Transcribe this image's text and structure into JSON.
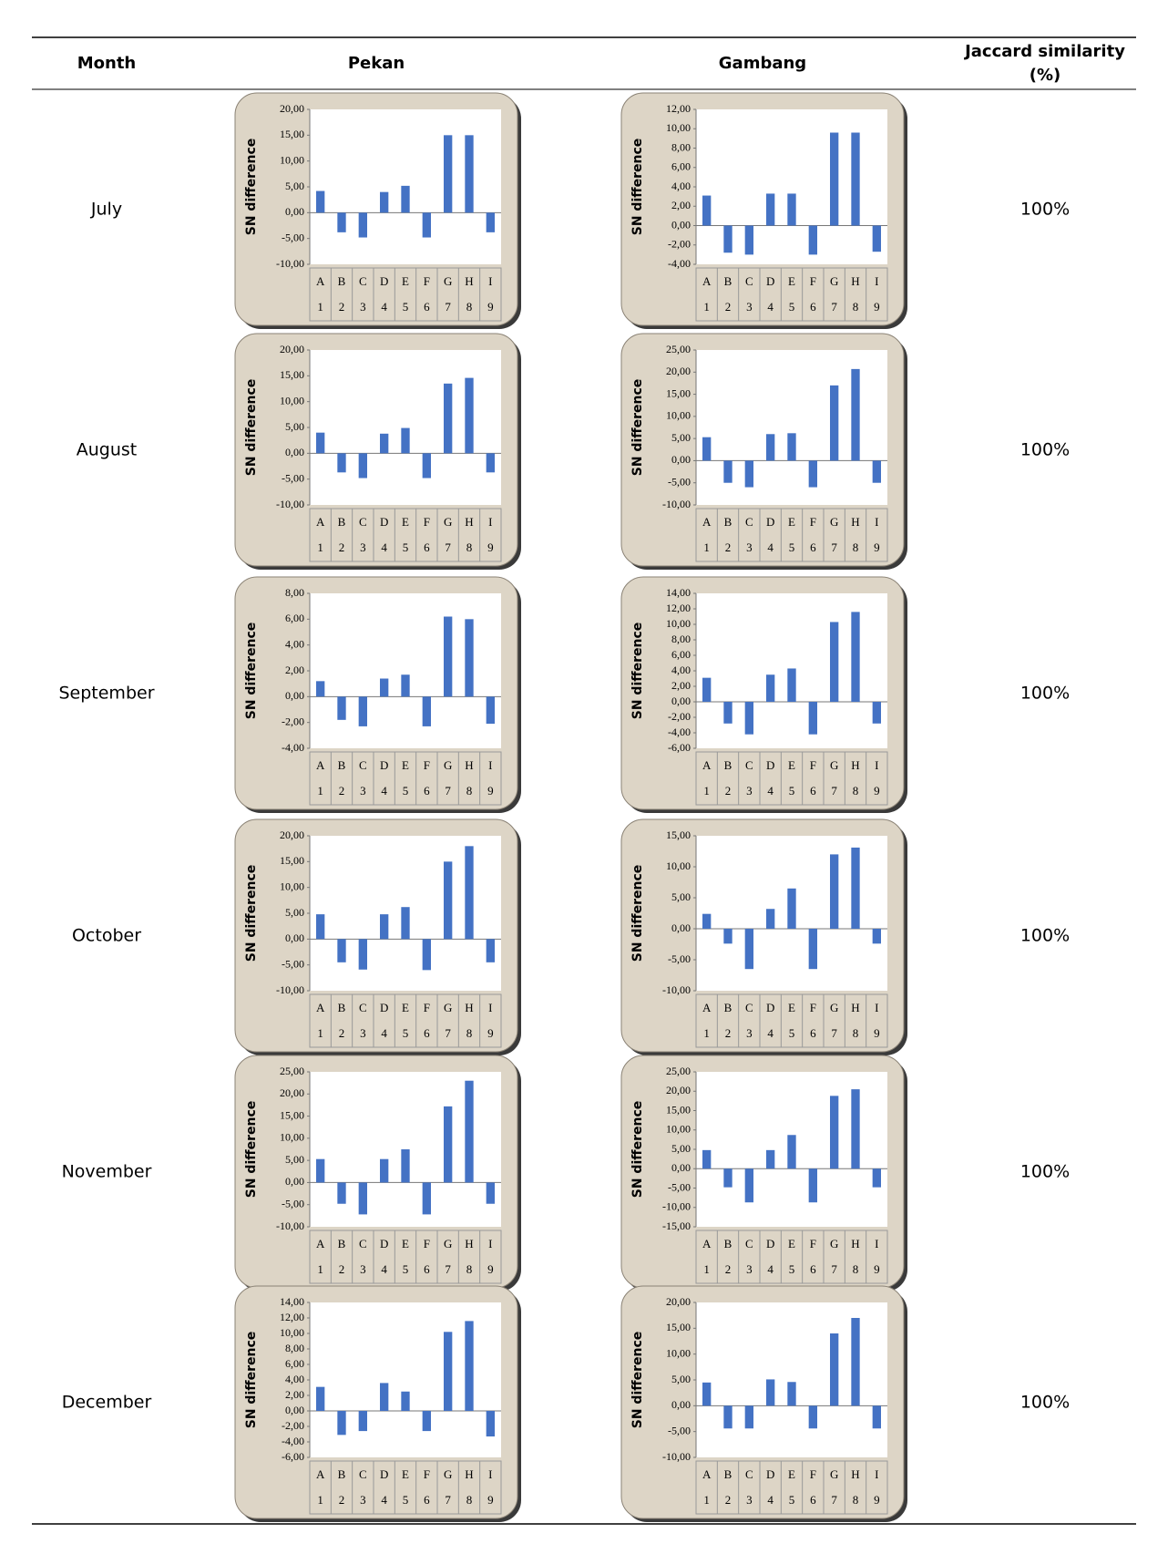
{
  "table": {
    "header": [
      "Month",
      "Pekan",
      "Gambang",
      [
        "Jaccard similarity",
        "(%)"
      ]
    ],
    "rows": [
      [
        "July",
        "100%"
      ],
      [
        "August",
        "100%"
      ],
      [
        "September",
        "100%"
      ],
      [
        "October",
        "100%"
      ],
      [
        "November",
        "100%"
      ],
      [
        "December",
        "100%"
      ]
    ]
  },
  "chart_data": [
    {
      "type": "bar",
      "y_label": "SN difference",
      "color": "#4472c4",
      "categories": [
        "A",
        "B",
        "C",
        "D",
        "E",
        "F",
        "G",
        "H",
        "I"
      ],
      "category_numbers": [
        "1",
        "2",
        "3",
        "4",
        "5",
        "6",
        "7",
        "8",
        "9"
      ],
      "values": [
        4.2,
        -3.8,
        -4.8,
        4.0,
        5.2,
        -4.8,
        15,
        15,
        -3.8
      ],
      "ylim": [
        -10,
        20
      ],
      "yticks": [
        {
          "value": -10,
          "label": "-10,00"
        },
        {
          "value": -5,
          "label": "-5,00"
        },
        {
          "value": 0,
          "label": "0,00"
        },
        {
          "value": 5,
          "label": "5,00"
        },
        {
          "value": 10,
          "label": "10,00"
        },
        {
          "value": 15,
          "label": "15,00"
        },
        {
          "value": 20,
          "label": "20,00"
        }
      ]
    },
    {
      "type": "bar",
      "y_label": "SN difference",
      "color": "#4472c4",
      "categories": [
        "A",
        "B",
        "C",
        "D",
        "E",
        "F",
        "G",
        "H",
        "I"
      ],
      "category_numbers": [
        "1",
        "2",
        "3",
        "4",
        "5",
        "6",
        "7",
        "8",
        "9"
      ],
      "values": [
        3.1,
        -2.8,
        -3.0,
        3.3,
        3.3,
        -3.0,
        9.6,
        9.6,
        -2.7
      ],
      "ylim": [
        -4,
        12
      ],
      "yticks": [
        {
          "value": -4,
          "label": "-4,00"
        },
        {
          "value": -2,
          "label": "-2,00"
        },
        {
          "value": 0,
          "label": "0,00"
        },
        {
          "value": 2,
          "label": "2,00"
        },
        {
          "value": 4,
          "label": "4,00"
        },
        {
          "value": 6,
          "label": "6,00"
        },
        {
          "value": 8,
          "label": "8,00"
        },
        {
          "value": 10,
          "label": "10,00"
        },
        {
          "value": 12,
          "label": "12,00"
        }
      ]
    },
    {
      "type": "bar",
      "y_label": "SN difference",
      "color": "#4472c4",
      "categories": [
        "A",
        "B",
        "C",
        "D",
        "E",
        "F",
        "G",
        "H",
        "I"
      ],
      "category_numbers": [
        "1",
        "2",
        "3",
        "4",
        "5",
        "6",
        "7",
        "8",
        "9"
      ],
      "values": [
        4.0,
        -3.7,
        -4.8,
        3.8,
        4.9,
        -4.8,
        13.5,
        14.6,
        -3.7
      ],
      "ylim": [
        -10,
        20
      ],
      "yticks": [
        {
          "value": -10,
          "label": "-10,00"
        },
        {
          "value": -5,
          "label": "-5,00"
        },
        {
          "value": 0,
          "label": "0,00"
        },
        {
          "value": 5,
          "label": "5,00"
        },
        {
          "value": 10,
          "label": "10,00"
        },
        {
          "value": 15,
          "label": "15,00"
        },
        {
          "value": 20,
          "label": "20,00"
        }
      ]
    },
    {
      "type": "bar",
      "y_label": "SN difference",
      "color": "#4472c4",
      "categories": [
        "A",
        "B",
        "C",
        "D",
        "E",
        "F",
        "G",
        "H",
        "I"
      ],
      "category_numbers": [
        "1",
        "2",
        "3",
        "4",
        "5",
        "6",
        "7",
        "8",
        "9"
      ],
      "values": [
        5.3,
        -5.0,
        -6.0,
        6.0,
        6.2,
        -6.0,
        17.0,
        20.7,
        -5.0
      ],
      "ylim": [
        -10,
        25
      ],
      "yticks": [
        {
          "value": -10,
          "label": "-10,00"
        },
        {
          "value": -5,
          "label": "-5,00"
        },
        {
          "value": 0,
          "label": "0,00"
        },
        {
          "value": 5,
          "label": "5,00"
        },
        {
          "value": 10,
          "label": "10,00"
        },
        {
          "value": 15,
          "label": "15,00"
        },
        {
          "value": 20,
          "label": "20,00"
        },
        {
          "value": 25,
          "label": "25,00"
        }
      ]
    },
    {
      "type": "bar",
      "y_label": "SN difference",
      "color": "#4472c4",
      "categories": [
        "A",
        "B",
        "C",
        "D",
        "E",
        "F",
        "G",
        "H",
        "I"
      ],
      "category_numbers": [
        "1",
        "2",
        "3",
        "4",
        "5",
        "6",
        "7",
        "8",
        "9"
      ],
      "values": [
        1.2,
        -1.8,
        -2.3,
        1.4,
        1.7,
        -2.3,
        6.2,
        6.0,
        -2.1
      ],
      "ylim": [
        -4,
        8
      ],
      "yticks": [
        {
          "value": -4,
          "label": "-4,00"
        },
        {
          "value": -2,
          "label": "-2,00"
        },
        {
          "value": 0,
          "label": "0,00"
        },
        {
          "value": 2,
          "label": "2,00"
        },
        {
          "value": 4,
          "label": "4,00"
        },
        {
          "value": 6,
          "label": "6,00"
        },
        {
          "value": 8,
          "label": "8,00"
        }
      ]
    },
    {
      "type": "bar",
      "y_label": "SN difference",
      "color": "#4472c4",
      "categories": [
        "A",
        "B",
        "C",
        "D",
        "E",
        "F",
        "G",
        "H",
        "I"
      ],
      "category_numbers": [
        "1",
        "2",
        "3",
        "4",
        "5",
        "6",
        "7",
        "8",
        "9"
      ],
      "values": [
        3.1,
        -2.8,
        -4.2,
        3.5,
        4.3,
        -4.2,
        10.3,
        11.6,
        -2.8
      ],
      "ylim": [
        -6,
        14
      ],
      "yticks": [
        {
          "value": -6,
          "label": "-6,00"
        },
        {
          "value": -4,
          "label": "-4,00"
        },
        {
          "value": -2,
          "label": "-2,00"
        },
        {
          "value": 0,
          "label": "0,00"
        },
        {
          "value": 2,
          "label": "2,00"
        },
        {
          "value": 4,
          "label": "4,00"
        },
        {
          "value": 6,
          "label": "6,00"
        },
        {
          "value": 8,
          "label": "8,00"
        },
        {
          "value": 10,
          "label": "10,00"
        },
        {
          "value": 12,
          "label": "12,00"
        },
        {
          "value": 14,
          "label": "14,00"
        }
      ]
    },
    {
      "type": "bar",
      "y_label": "SN difference",
      "color": "#4472c4",
      "categories": [
        "A",
        "B",
        "C",
        "D",
        "E",
        "F",
        "G",
        "H",
        "I"
      ],
      "category_numbers": [
        "1",
        "2",
        "3",
        "4",
        "5",
        "6",
        "7",
        "8",
        "9"
      ],
      "values": [
        4.8,
        -4.5,
        -5.9,
        4.8,
        6.2,
        -6.0,
        15.0,
        18.0,
        -4.5
      ],
      "ylim": [
        -10,
        20
      ],
      "yticks": [
        {
          "value": -10,
          "label": "-10,00"
        },
        {
          "value": -5,
          "label": "-5,00"
        },
        {
          "value": 0,
          "label": "0,00"
        },
        {
          "value": 5,
          "label": "5,00"
        },
        {
          "value": 10,
          "label": "10,00"
        },
        {
          "value": 15,
          "label": "15,00"
        },
        {
          "value": 20,
          "label": "20,00"
        }
      ]
    },
    {
      "type": "bar",
      "y_label": "SN difference",
      "color": "#4472c4",
      "categories": [
        "A",
        "B",
        "C",
        "D",
        "E",
        "F",
        "G",
        "H",
        "I"
      ],
      "category_numbers": [
        "1",
        "2",
        "3",
        "4",
        "5",
        "6",
        "7",
        "8",
        "9"
      ],
      "values": [
        2.4,
        -2.4,
        -6.5,
        3.2,
        6.5,
        -6.5,
        12.0,
        13.1,
        -2.4
      ],
      "ylim": [
        -10,
        15
      ],
      "yticks": [
        {
          "value": -10,
          "label": "-10,00"
        },
        {
          "value": -5,
          "label": "-5,00"
        },
        {
          "value": 0,
          "label": "0,00"
        },
        {
          "value": 5,
          "label": "5,00"
        },
        {
          "value": 10,
          "label": "10,00"
        },
        {
          "value": 15,
          "label": "15,00"
        }
      ]
    },
    {
      "type": "bar",
      "y_label": "SN difference",
      "color": "#4472c4",
      "categories": [
        "A",
        "B",
        "C",
        "D",
        "E",
        "F",
        "G",
        "H",
        "I"
      ],
      "category_numbers": [
        "1",
        "2",
        "3",
        "4",
        "5",
        "6",
        "7",
        "8",
        "9"
      ],
      "values": [
        5.3,
        -4.8,
        -7.2,
        5.3,
        7.5,
        -7.2,
        17.2,
        23.0,
        -4.8
      ],
      "ylim": [
        -10,
        25
      ],
      "yticks": [
        {
          "value": -10,
          "label": "-10,00"
        },
        {
          "value": -5,
          "label": "-5,00"
        },
        {
          "value": 0,
          "label": "0,00"
        },
        {
          "value": 5,
          "label": "5,00"
        },
        {
          "value": 10,
          "label": "10,00"
        },
        {
          "value": 15,
          "label": "15,00"
        },
        {
          "value": 20,
          "label": "20,00"
        },
        {
          "value": 25,
          "label": "25,00"
        }
      ]
    },
    {
      "type": "bar",
      "y_label": "SN difference",
      "color": "#4472c4",
      "categories": [
        "A",
        "B",
        "C",
        "D",
        "E",
        "F",
        "G",
        "H",
        "I"
      ],
      "category_numbers": [
        "1",
        "2",
        "3",
        "4",
        "5",
        "6",
        "7",
        "8",
        "9"
      ],
      "values": [
        4.8,
        -4.8,
        -8.7,
        4.8,
        8.7,
        -8.7,
        18.8,
        20.5,
        -4.8
      ],
      "ylim": [
        -15,
        25
      ],
      "yticks": [
        {
          "value": -15,
          "label": "-15,00"
        },
        {
          "value": -10,
          "label": "-10,00"
        },
        {
          "value": -5,
          "label": "-5,00"
        },
        {
          "value": 0,
          "label": "0,00"
        },
        {
          "value": 5,
          "label": "5,00"
        },
        {
          "value": 10,
          "label": "10,00"
        },
        {
          "value": 15,
          "label": "15,00"
        },
        {
          "value": 20,
          "label": "20,00"
        },
        {
          "value": 25,
          "label": "25,00"
        }
      ]
    },
    {
      "type": "bar",
      "y_label": "SN difference",
      "color": "#4472c4",
      "categories": [
        "A",
        "B",
        "C",
        "D",
        "E",
        "F",
        "G",
        "H",
        "I"
      ],
      "category_numbers": [
        "1",
        "2",
        "3",
        "4",
        "5",
        "6",
        "7",
        "8",
        "9"
      ],
      "values": [
        3.1,
        -3.1,
        -2.6,
        3.6,
        2.5,
        -2.6,
        10.2,
        11.6,
        -3.3
      ],
      "ylim": [
        -6,
        14
      ],
      "yticks": [
        {
          "value": -6,
          "label": "-6,00"
        },
        {
          "value": -4,
          "label": "-4,00"
        },
        {
          "value": -2,
          "label": "-2,00"
        },
        {
          "value": 0,
          "label": "0,00"
        },
        {
          "value": 2,
          "label": "2,00"
        },
        {
          "value": 4,
          "label": "4,00"
        },
        {
          "value": 6,
          "label": "6,00"
        },
        {
          "value": 8,
          "label": "8,00"
        },
        {
          "value": 10,
          "label": "10,00"
        },
        {
          "value": 12,
          "label": "12,00"
        },
        {
          "value": 14,
          "label": "14,00"
        }
      ]
    },
    {
      "type": "bar",
      "y_label": "SN difference",
      "color": "#4472c4",
      "categories": [
        "A",
        "B",
        "C",
        "D",
        "E",
        "F",
        "G",
        "H",
        "I"
      ],
      "category_numbers": [
        "1",
        "2",
        "3",
        "4",
        "5",
        "6",
        "7",
        "8",
        "9"
      ],
      "values": [
        4.5,
        -4.4,
        -4.4,
        5.1,
        4.6,
        -4.4,
        14.0,
        17.0,
        -4.4
      ],
      "ylim": [
        -10,
        20
      ],
      "yticks": [
        {
          "value": -10,
          "label": "-10,00"
        },
        {
          "value": -5,
          "label": "-5,00"
        },
        {
          "value": 0,
          "label": "0,00"
        },
        {
          "value": 5,
          "label": "5,00"
        },
        {
          "value": 10,
          "label": "10,00"
        },
        {
          "value": 15,
          "label": "15,00"
        },
        {
          "value": 20,
          "label": "20,00"
        }
      ]
    }
  ]
}
